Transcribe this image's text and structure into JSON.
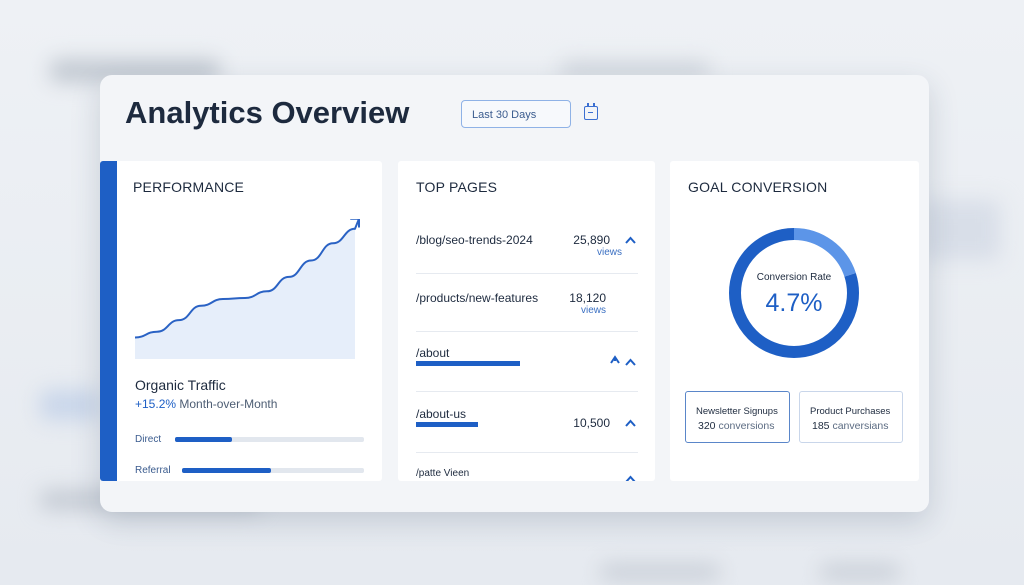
{
  "header": {
    "title": "Analytics Overview",
    "date_range": "Last 30 Days",
    "calendar_icon": "calendar-icon"
  },
  "performance": {
    "heading": "PERFORMANCE",
    "metric_title": "Organic Traffic",
    "growth_value": "+15.2%",
    "growth_label": "Month-over-Month",
    "trend": [
      12,
      18,
      30,
      45,
      52,
      53,
      60,
      75,
      92,
      110,
      125
    ],
    "sources": [
      {
        "label": "Direct",
        "fraction": 0.3
      },
      {
        "label": "Referral",
        "fraction": 0.49
      }
    ]
  },
  "top_pages": {
    "heading": "TOP PAGES",
    "rows": [
      {
        "path": "/blog/seo-trends-2024",
        "views": "25,890",
        "views_label": "views",
        "trend": "up"
      },
      {
        "path": "/products/new-features",
        "views": "18,120",
        "views_label": "views",
        "trend": ""
      },
      {
        "path": "/about",
        "views": "",
        "views_label": "",
        "trend": "up",
        "bar_fraction": 0.47
      },
      {
        "path": "/about-us",
        "views": "10,500",
        "views_label": "",
        "trend": "up",
        "bar_fraction": 0.28
      },
      {
        "path": "/patte Vieen",
        "views": "",
        "views_label": "",
        "trend": "up"
      }
    ]
  },
  "goal": {
    "heading": "GOAL CONVERSION",
    "rate_label": "Conversion Rate",
    "rate_value": "4.7%",
    "donut": {
      "primary": 0.8,
      "secondary": 0.2,
      "primary_color": "#1e5fc5",
      "secondary_color": "#5c95e8"
    },
    "stats": [
      {
        "label": "Newsletter Signups",
        "count": "320",
        "unit": "conversions"
      },
      {
        "label": "Product Purchases",
        "count": "185",
        "unit": "canversians"
      }
    ]
  }
}
